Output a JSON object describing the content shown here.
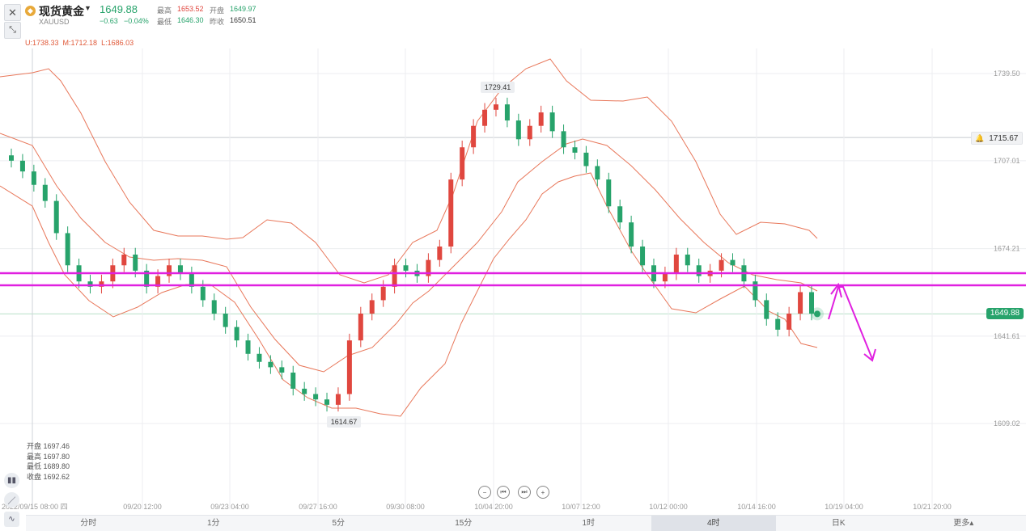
{
  "header": {
    "close_icon": "close-icon",
    "expand_icon": "expand-icon",
    "symbol_name": "现货黄金",
    "symbol_code": "XAUUSD",
    "last_price": "1649.88",
    "change": "−0.63",
    "change_pct": "−0.04%",
    "high_label": "最高",
    "high_value": "1653.52",
    "open_label": "开盘",
    "open_value": "1649.97",
    "low_label": "最低",
    "low_value": "1646.30",
    "prev_close_label": "昨收",
    "prev_close_value": "1650.51",
    "boll_text": "U:1738.33  M:1712.18  L:1686.03"
  },
  "price_axis": [
    "1739.50",
    "1707.01",
    "1674.21",
    "1641.61",
    "1609.02"
  ],
  "alert_price": "1715.67",
  "current_price_tag": "1649.88",
  "high_marker": "1729.41",
  "low_marker": "1614.67",
  "time_axis": [
    "2022/09/15 08:00 四",
    "09/20 12:00",
    "09/23 04:00",
    "09/27 16:00",
    "09/30 08:00",
    "10/04 20:00",
    "10/07 12:00",
    "10/12 00:00",
    "10/14 16:00",
    "10/19 04:00",
    "10/21 20:00"
  ],
  "ohlc_panel": {
    "open": "开盘 1697.46",
    "high": "最高 1697.80",
    "low": "最低 1689.80",
    "close": "收盘 1692.62"
  },
  "nav_buttons": [
    "zoom-out",
    "step-back",
    "step-forward",
    "zoom-in"
  ],
  "period_tabs": [
    "分时",
    "1分",
    "5分",
    "15分",
    "1时",
    "4时",
    "日K",
    "更多▴"
  ],
  "active_tab": "4时",
  "colors": {
    "up": "#e0473f",
    "down": "#27a36b",
    "band": "#e8775a",
    "annotation": "#e020e0",
    "price_tag": "#27a36b"
  },
  "chart_data": {
    "type": "candlestick",
    "y_range": [
      1590,
      1760
    ],
    "bollinger": {
      "upper": 1738.33,
      "mid": 1712.18,
      "lower": 1686.03
    },
    "candles_close_trace": [
      1707,
      1703,
      1698,
      1692,
      1680,
      1668,
      1662,
      1660,
      1662,
      1668,
      1672,
      1666,
      1660,
      1664,
      1668,
      1665,
      1660,
      1655,
      1650,
      1645,
      1640,
      1635,
      1632,
      1630,
      1628,
      1622,
      1620,
      1618,
      1616,
      1620,
      1640,
      1650,
      1655,
      1660,
      1668,
      1666,
      1664,
      1670,
      1675,
      1700,
      1712,
      1720,
      1726,
      1728,
      1722,
      1715,
      1720,
      1725,
      1718,
      1712,
      1710,
      1705,
      1700,
      1690,
      1684,
      1675,
      1668,
      1662,
      1665,
      1672,
      1668,
      1664,
      1666,
      1670,
      1668,
      1662,
      1655,
      1648,
      1644,
      1650,
      1658,
      1650
    ]
  }
}
